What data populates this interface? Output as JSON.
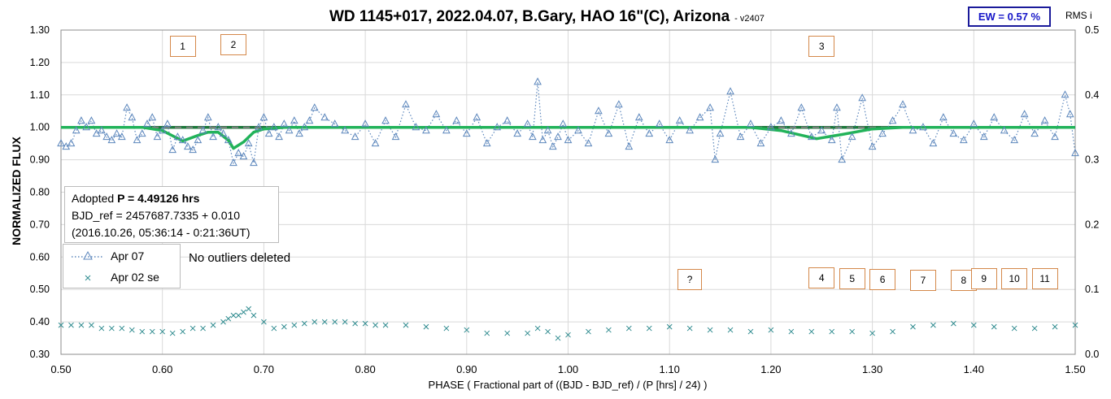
{
  "header": {
    "title": "WD 1145+017, 2022.04.07, B.Gary, HAO 16\"(C), Arizona",
    "version": "- v2407",
    "ew_label": "EW = 0.57 %",
    "rms_label": "RMS i"
  },
  "info": {
    "line1_prefix": "Adopted",
    "line1_bold": "P = 4.49126 hrs",
    "line2": "BJD_ref = 2457687.7335 + 0.010",
    "line3": "(2016.10.26, 05:36:14 - 0:21:36UT)"
  },
  "legend": [
    {
      "label": "Apr 07"
    },
    {
      "label": "Apr 02 se"
    }
  ],
  "note": "No outliers deleted",
  "markers": [
    {
      "label": "1",
      "phase": 0.62,
      "flux": 1.25
    },
    {
      "label": "2",
      "phase": 0.67,
      "flux": 1.255
    },
    {
      "label": "3",
      "phase": 1.25,
      "flux": 1.25
    },
    {
      "label": "?",
      "phase": 1.12,
      "flux": 0.53
    },
    {
      "label": "4",
      "phase": 1.25,
      "flux": 0.535
    },
    {
      "label": "5",
      "phase": 1.28,
      "flux": 0.533
    },
    {
      "label": "6",
      "phase": 1.31,
      "flux": 0.531
    },
    {
      "label": "7",
      "phase": 1.35,
      "flux": 0.528
    },
    {
      "label": "8",
      "phase": 1.39,
      "flux": 0.529
    },
    {
      "label": "9",
      "phase": 1.41,
      "flux": 0.534
    },
    {
      "label": "10",
      "phase": 1.44,
      "flux": 0.532
    },
    {
      "label": "11",
      "phase": 1.47,
      "flux": 0.532
    }
  ],
  "colors": {
    "apr07": "#5b86bc",
    "apr02": "#2f8b8f",
    "model": "#22b35a",
    "dashed": "#7f7f7f",
    "baseline": "#1e7a3c",
    "marker_border": "#d4884a",
    "ew": "#1515c8"
  },
  "chart_data": {
    "type": "scatter",
    "xlabel": "PHASE ( Fractional part of ((BJD - BJD_ref) / (P [hrs] / 24) )",
    "ylabel": "NORMALIZED FLUX",
    "y2label": "RMS i",
    "xlim": [
      0.5,
      1.5
    ],
    "ylim": [
      0.3,
      1.3
    ],
    "y2lim": [
      0.0,
      0.5
    ],
    "xticks": [
      "0.50",
      "0.60",
      "0.70",
      "0.80",
      "0.90",
      "1.00",
      "1.10",
      "1.20",
      "1.30",
      "1.40",
      "1.50"
    ],
    "yticks": [
      "0.30",
      "0.40",
      "0.50",
      "0.60",
      "0.70",
      "0.80",
      "0.90",
      "1.00",
      "1.10",
      "1.20",
      "1.30"
    ],
    "y2ticks": [
      "0.0",
      "0.1",
      "0.2",
      "0.3",
      "0.4",
      "0.5"
    ],
    "grid": true,
    "reference_line": 1.0,
    "series": [
      {
        "name": "Apr 07",
        "style": "triangle-dotted",
        "points": [
          [
            0.5,
            0.95
          ],
          [
            0.505,
            0.94
          ],
          [
            0.51,
            0.95
          ],
          [
            0.515,
            0.99
          ],
          [
            0.52,
            1.02
          ],
          [
            0.525,
            1.0
          ],
          [
            0.53,
            1.02
          ],
          [
            0.535,
            0.98
          ],
          [
            0.54,
            0.99
          ],
          [
            0.545,
            0.97
          ],
          [
            0.55,
            0.96
          ],
          [
            0.555,
            0.98
          ],
          [
            0.56,
            0.97
          ],
          [
            0.565,
            1.06
          ],
          [
            0.57,
            1.03
          ],
          [
            0.575,
            0.96
          ],
          [
            0.58,
            0.98
          ],
          [
            0.585,
            1.01
          ],
          [
            0.59,
            1.03
          ],
          [
            0.595,
            0.97
          ],
          [
            0.6,
            0.99
          ],
          [
            0.605,
            1.01
          ],
          [
            0.61,
            0.93
          ],
          [
            0.615,
            0.97
          ],
          [
            0.62,
            0.96
          ],
          [
            0.625,
            0.94
          ],
          [
            0.63,
            0.93
          ],
          [
            0.635,
            0.96
          ],
          [
            0.64,
            0.99
          ],
          [
            0.645,
            1.03
          ],
          [
            0.65,
            0.97
          ],
          [
            0.655,
            1.0
          ],
          [
            0.66,
            0.98
          ],
          [
            0.665,
            0.96
          ],
          [
            0.67,
            0.89
          ],
          [
            0.675,
            0.92
          ],
          [
            0.68,
            0.91
          ],
          [
            0.685,
            0.95
          ],
          [
            0.69,
            0.89
          ],
          [
            0.695,
            1.0
          ],
          [
            0.7,
            1.03
          ],
          [
            0.705,
            0.98
          ],
          [
            0.71,
            1.0
          ],
          [
            0.715,
            0.97
          ],
          [
            0.72,
            1.01
          ],
          [
            0.725,
            0.99
          ],
          [
            0.73,
            1.02
          ],
          [
            0.735,
            0.98
          ],
          [
            0.74,
            1.0
          ],
          [
            0.745,
            1.02
          ],
          [
            0.75,
            1.06
          ],
          [
            0.76,
            1.03
          ],
          [
            0.77,
            1.01
          ],
          [
            0.78,
            0.99
          ],
          [
            0.79,
            0.97
          ],
          [
            0.8,
            1.01
          ],
          [
            0.81,
            0.95
          ],
          [
            0.82,
            1.02
          ],
          [
            0.83,
            0.97
          ],
          [
            0.84,
            1.07
          ],
          [
            0.85,
            1.0
          ],
          [
            0.86,
            0.99
          ],
          [
            0.87,
            1.04
          ],
          [
            0.88,
            0.99
          ],
          [
            0.89,
            1.02
          ],
          [
            0.9,
            0.98
          ],
          [
            0.91,
            1.03
          ],
          [
            0.92,
            0.95
          ],
          [
            0.93,
            1.0
          ],
          [
            0.94,
            1.02
          ],
          [
            0.95,
            0.98
          ],
          [
            0.96,
            1.01
          ],
          [
            0.965,
            0.97
          ],
          [
            0.97,
            1.14
          ],
          [
            0.975,
            0.96
          ],
          [
            0.98,
            0.99
          ],
          [
            0.985,
            0.94
          ],
          [
            0.99,
            0.97
          ],
          [
            0.995,
            1.01
          ],
          [
            1.0,
            0.96
          ],
          [
            1.01,
            0.99
          ],
          [
            1.02,
            0.95
          ],
          [
            1.03,
            1.05
          ],
          [
            1.04,
            0.98
          ],
          [
            1.05,
            1.07
          ],
          [
            1.06,
            0.94
          ],
          [
            1.07,
            1.03
          ],
          [
            1.08,
            0.98
          ],
          [
            1.09,
            1.01
          ],
          [
            1.1,
            0.96
          ],
          [
            1.11,
            1.02
          ],
          [
            1.12,
            0.99
          ],
          [
            1.13,
            1.03
          ],
          [
            1.14,
            1.06
          ],
          [
            1.145,
            0.9
          ],
          [
            1.15,
            0.98
          ],
          [
            1.16,
            1.11
          ],
          [
            1.17,
            0.97
          ],
          [
            1.18,
            1.01
          ],
          [
            1.19,
            0.95
          ],
          [
            1.2,
            1.0
          ],
          [
            1.21,
            1.02
          ],
          [
            1.22,
            0.98
          ],
          [
            1.23,
            1.06
          ],
          [
            1.24,
            0.97
          ],
          [
            1.25,
            0.99
          ],
          [
            1.26,
            0.96
          ],
          [
            1.265,
            1.06
          ],
          [
            1.27,
            0.9
          ],
          [
            1.28,
            0.97
          ],
          [
            1.29,
            1.09
          ],
          [
            1.3,
            0.94
          ],
          [
            1.31,
            0.98
          ],
          [
            1.32,
            1.02
          ],
          [
            1.33,
            1.07
          ],
          [
            1.34,
            0.99
          ],
          [
            1.35,
            1.0
          ],
          [
            1.36,
            0.95
          ],
          [
            1.37,
            1.03
          ],
          [
            1.38,
            0.98
          ],
          [
            1.39,
            0.96
          ],
          [
            1.4,
            1.01
          ],
          [
            1.41,
            0.97
          ],
          [
            1.42,
            1.03
          ],
          [
            1.43,
            0.99
          ],
          [
            1.44,
            0.96
          ],
          [
            1.45,
            1.04
          ],
          [
            1.46,
            0.98
          ],
          [
            1.47,
            1.02
          ],
          [
            1.48,
            0.97
          ],
          [
            1.49,
            1.1
          ],
          [
            1.495,
            1.04
          ],
          [
            1.5,
            0.92
          ]
        ]
      },
      {
        "name": "Apr 02 se",
        "style": "x-marker",
        "points": [
          [
            0.5,
            0.39
          ],
          [
            0.51,
            0.39
          ],
          [
            0.52,
            0.39
          ],
          [
            0.53,
            0.39
          ],
          [
            0.54,
            0.38
          ],
          [
            0.55,
            0.38
          ],
          [
            0.56,
            0.38
          ],
          [
            0.57,
            0.375
          ],
          [
            0.58,
            0.37
          ],
          [
            0.59,
            0.37
          ],
          [
            0.6,
            0.37
          ],
          [
            0.61,
            0.365
          ],
          [
            0.62,
            0.37
          ],
          [
            0.63,
            0.38
          ],
          [
            0.64,
            0.38
          ],
          [
            0.65,
            0.39
          ],
          [
            0.66,
            0.4
          ],
          [
            0.665,
            0.41
          ],
          [
            0.67,
            0.42
          ],
          [
            0.675,
            0.42
          ],
          [
            0.68,
            0.43
          ],
          [
            0.685,
            0.44
          ],
          [
            0.69,
            0.42
          ],
          [
            0.7,
            0.4
          ],
          [
            0.71,
            0.38
          ],
          [
            0.72,
            0.385
          ],
          [
            0.73,
            0.39
          ],
          [
            0.74,
            0.395
          ],
          [
            0.75,
            0.4
          ],
          [
            0.76,
            0.4
          ],
          [
            0.77,
            0.4
          ],
          [
            0.78,
            0.4
          ],
          [
            0.79,
            0.395
          ],
          [
            0.8,
            0.395
          ],
          [
            0.81,
            0.39
          ],
          [
            0.82,
            0.39
          ],
          [
            0.84,
            0.39
          ],
          [
            0.86,
            0.385
          ],
          [
            0.88,
            0.38
          ],
          [
            0.9,
            0.375
          ],
          [
            0.92,
            0.365
          ],
          [
            0.94,
            0.365
          ],
          [
            0.96,
            0.365
          ],
          [
            0.97,
            0.38
          ],
          [
            0.98,
            0.37
          ],
          [
            0.99,
            0.35
          ],
          [
            1.0,
            0.36
          ],
          [
            1.02,
            0.37
          ],
          [
            1.04,
            0.375
          ],
          [
            1.06,
            0.38
          ],
          [
            1.08,
            0.38
          ],
          [
            1.1,
            0.385
          ],
          [
            1.12,
            0.38
          ],
          [
            1.14,
            0.375
          ],
          [
            1.16,
            0.375
          ],
          [
            1.18,
            0.37
          ],
          [
            1.2,
            0.375
          ],
          [
            1.22,
            0.37
          ],
          [
            1.24,
            0.37
          ],
          [
            1.26,
            0.37
          ],
          [
            1.28,
            0.37
          ],
          [
            1.3,
            0.365
          ],
          [
            1.32,
            0.37
          ],
          [
            1.34,
            0.385
          ],
          [
            1.36,
            0.39
          ],
          [
            1.38,
            0.395
          ],
          [
            1.4,
            0.39
          ],
          [
            1.42,
            0.385
          ],
          [
            1.44,
            0.38
          ],
          [
            1.46,
            0.38
          ],
          [
            1.48,
            0.385
          ],
          [
            1.5,
            0.39
          ]
        ]
      },
      {
        "name": "model",
        "style": "line",
        "points": [
          [
            0.5,
            1.0
          ],
          [
            0.58,
            1.0
          ],
          [
            0.6,
            0.99
          ],
          [
            0.62,
            0.958
          ],
          [
            0.635,
            0.975
          ],
          [
            0.645,
            0.985
          ],
          [
            0.655,
            0.985
          ],
          [
            0.665,
            0.96
          ],
          [
            0.67,
            0.935
          ],
          [
            0.68,
            0.955
          ],
          [
            0.69,
            0.985
          ],
          [
            0.7,
            0.995
          ],
          [
            0.72,
            1.0
          ],
          [
            1.18,
            1.0
          ],
          [
            1.21,
            0.99
          ],
          [
            1.245,
            0.965
          ],
          [
            1.27,
            0.978
          ],
          [
            1.3,
            0.995
          ],
          [
            1.33,
            1.0
          ],
          [
            1.5,
            1.0
          ]
        ]
      }
    ]
  },
  "labels": {
    "ylabel": "NORMALIZED FLUX",
    "xlabel": "PHASE ( Fractional part of ((BJD - BJD_ref) / (P [hrs] / 24) )"
  }
}
